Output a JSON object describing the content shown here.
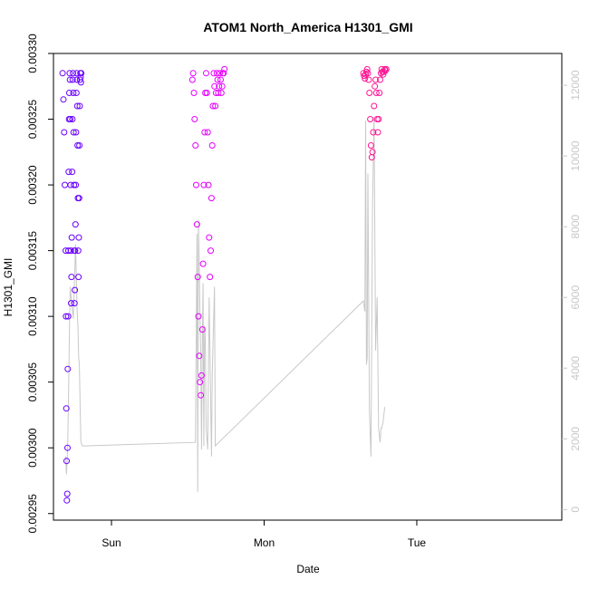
{
  "chart_data": {
    "type": "scatter",
    "title": "ATOM1 North_America H1301_GMI",
    "xlabel": "Date",
    "ylabel": "H1301_GMI",
    "x_ticks": [
      "Sun",
      "Mon",
      "Tue"
    ],
    "x_range_days": [
      -0.38,
      2.95
    ],
    "x_tick_days": [
      0,
      1,
      2
    ],
    "ylim": [
      0.002945,
      0.0033
    ],
    "y_ticks": [
      0.00295,
      0.003,
      0.00305,
      0.0031,
      0.00315,
      0.0032,
      0.00325,
      0.0033
    ],
    "y_tick_labels": [
      "0.00295",
      "0.00300",
      "0.00305",
      "0.00310",
      "0.00315",
      "0.00320",
      "0.00325",
      "0.00330"
    ],
    "y2lim": [
      -300,
      12900
    ],
    "y2_ticks": [
      0,
      2000,
      4000,
      6000,
      8000,
      10000,
      12000
    ],
    "y2_tick_labels": [
      "0",
      "2000",
      "4000",
      "6000",
      "8000",
      "10000",
      "12000"
    ],
    "grid": false,
    "legend": "none",
    "colors": {
      "line": "#c8c8c8",
      "seg1": "#6a00ff",
      "seg2": "#e600ff",
      "seg3": "#ff1493"
    },
    "series": [
      {
        "axis": "right",
        "style": "line",
        "color": "#c8c8c8",
        "x": [
          -0.3,
          -0.295,
          -0.29,
          -0.285,
          -0.28,
          -0.275,
          -0.27,
          -0.26,
          -0.25,
          -0.24,
          -0.235,
          -0.23,
          -0.225,
          -0.22,
          -0.215,
          -0.21,
          -0.205,
          -0.2,
          -0.19,
          -0.18,
          0.55,
          0.56,
          0.565,
          0.57,
          0.58,
          0.585,
          0.59,
          0.595,
          0.6,
          0.605,
          0.61,
          0.615,
          0.62,
          0.63,
          0.64,
          0.655,
          0.66,
          0.675,
          0.68,
          1.65,
          1.66,
          1.665,
          1.67,
          1.675,
          1.68,
          1.69,
          1.7,
          1.71,
          1.72,
          1.73,
          1.74,
          1.75,
          1.76,
          1.765,
          1.77,
          1.78,
          1.79
        ],
        "y": [
          1500,
          1000,
          1400,
          2200,
          3500,
          5200,
          6300,
          5800,
          5400,
          6800,
          7500,
          6500,
          5600,
          5200,
          4300,
          4100,
          2800,
          1900,
          1800,
          1800,
          1900,
          7800,
          500,
          8200,
          5500,
          4200,
          1700,
          4800,
          6400,
          1800,
          5200,
          4800,
          2300,
          1700,
          6000,
          1500,
          3800,
          6300,
          1800,
          5900,
          5600,
          11000,
          4100,
          4300,
          9500,
          2800,
          1500,
          8600,
          11100,
          4500,
          6000,
          2300,
          1900,
          2300,
          2300,
          2500,
          2900
        ]
      },
      {
        "axis": "left",
        "style": "points",
        "color": "#6a00ff",
        "x": [
          -0.32,
          -0.315,
          -0.31,
          -0.305,
          -0.3,
          -0.298,
          -0.296,
          -0.294,
          -0.292,
          -0.29,
          -0.288,
          -0.286,
          -0.284,
          -0.282,
          -0.28,
          -0.278,
          -0.276,
          -0.274,
          -0.272,
          -0.27,
          -0.268,
          -0.266,
          -0.264,
          -0.262,
          -0.26,
          -0.258,
          -0.256,
          -0.254,
          -0.252,
          -0.25,
          -0.248,
          -0.246,
          -0.244,
          -0.242,
          -0.24,
          -0.238,
          -0.236,
          -0.234,
          -0.232,
          -0.23,
          -0.228,
          -0.226,
          -0.224,
          -0.222,
          -0.22,
          -0.218,
          -0.216,
          -0.214,
          -0.212,
          -0.21,
          -0.208,
          -0.206,
          -0.204,
          -0.202,
          -0.2,
          -0.198
        ],
        "y": [
          0.003285,
          0.003265,
          0.00324,
          0.0032,
          0.00315,
          0.0031,
          0.00303,
          0.00299,
          0.00296,
          0.002965,
          0.003,
          0.00306,
          0.0031,
          0.00315,
          0.00321,
          0.00325,
          0.00327,
          0.003285,
          0.00328,
          0.00325,
          0.0032,
          0.00315,
          0.00311,
          0.00313,
          0.00316,
          0.00321,
          0.00325,
          0.00328,
          0.003285,
          0.00327,
          0.00324,
          0.0032,
          0.00315,
          0.00311,
          0.00312,
          0.00315,
          0.00317,
          0.0032,
          0.00324,
          0.00327,
          0.003285,
          0.00328,
          0.00326,
          0.00323,
          0.00319,
          0.00315,
          0.00313,
          0.00316,
          0.00319,
          0.00323,
          0.00326,
          0.00328,
          0.003285,
          0.003282,
          0.003278,
          0.003285
        ]
      },
      {
        "axis": "left",
        "style": "points",
        "color": "#e600ff",
        "x": [
          0.53,
          0.535,
          0.54,
          0.545,
          0.55,
          0.555,
          0.56,
          0.565,
          0.57,
          0.575,
          0.58,
          0.585,
          0.59,
          0.595,
          0.6,
          0.605,
          0.61,
          0.615,
          0.62,
          0.625,
          0.63,
          0.635,
          0.64,
          0.645,
          0.65,
          0.655,
          0.66,
          0.665,
          0.67,
          0.675,
          0.68,
          0.685,
          0.69,
          0.695,
          0.7,
          0.705,
          0.71,
          0.715,
          0.72,
          0.725,
          0.73,
          0.735,
          0.74
        ],
        "y": [
          0.00328,
          0.003285,
          0.00327,
          0.00325,
          0.00323,
          0.0032,
          0.00317,
          0.00313,
          0.0031,
          0.00307,
          0.00305,
          0.00304,
          0.003055,
          0.00309,
          0.00314,
          0.0032,
          0.00324,
          0.00327,
          0.003285,
          0.00327,
          0.00324,
          0.0032,
          0.00316,
          0.00313,
          0.00315,
          0.00319,
          0.00323,
          0.00326,
          0.003285,
          0.003275,
          0.00326,
          0.00327,
          0.003285,
          0.00328,
          0.00327,
          0.003275,
          0.003285,
          0.00328,
          0.00327,
          0.003275,
          0.003285,
          0.003285,
          0.003288
        ]
      },
      {
        "axis": "left",
        "style": "points",
        "color": "#ff1493",
        "x": [
          1.65,
          1.655,
          1.66,
          1.665,
          1.67,
          1.675,
          1.68,
          1.685,
          1.69,
          1.695,
          1.7,
          1.705,
          1.71,
          1.715,
          1.72,
          1.725,
          1.73,
          1.735,
          1.74,
          1.745,
          1.75,
          1.755,
          1.76,
          1.765,
          1.77,
          1.775,
          1.78,
          1.785,
          1.79,
          1.795,
          1.8
        ],
        "y": [
          0.003285,
          0.003283,
          0.003281,
          0.003284,
          0.003286,
          0.003288,
          0.003285,
          0.00328,
          0.00327,
          0.00325,
          0.00323,
          0.003221,
          0.003225,
          0.00324,
          0.00326,
          0.003275,
          0.00328,
          0.00327,
          0.00325,
          0.00324,
          0.00325,
          0.00327,
          0.00328,
          0.003285,
          0.003288,
          0.003286,
          0.003284,
          0.003286,
          0.003288,
          0.003287,
          0.003288
        ]
      }
    ]
  }
}
